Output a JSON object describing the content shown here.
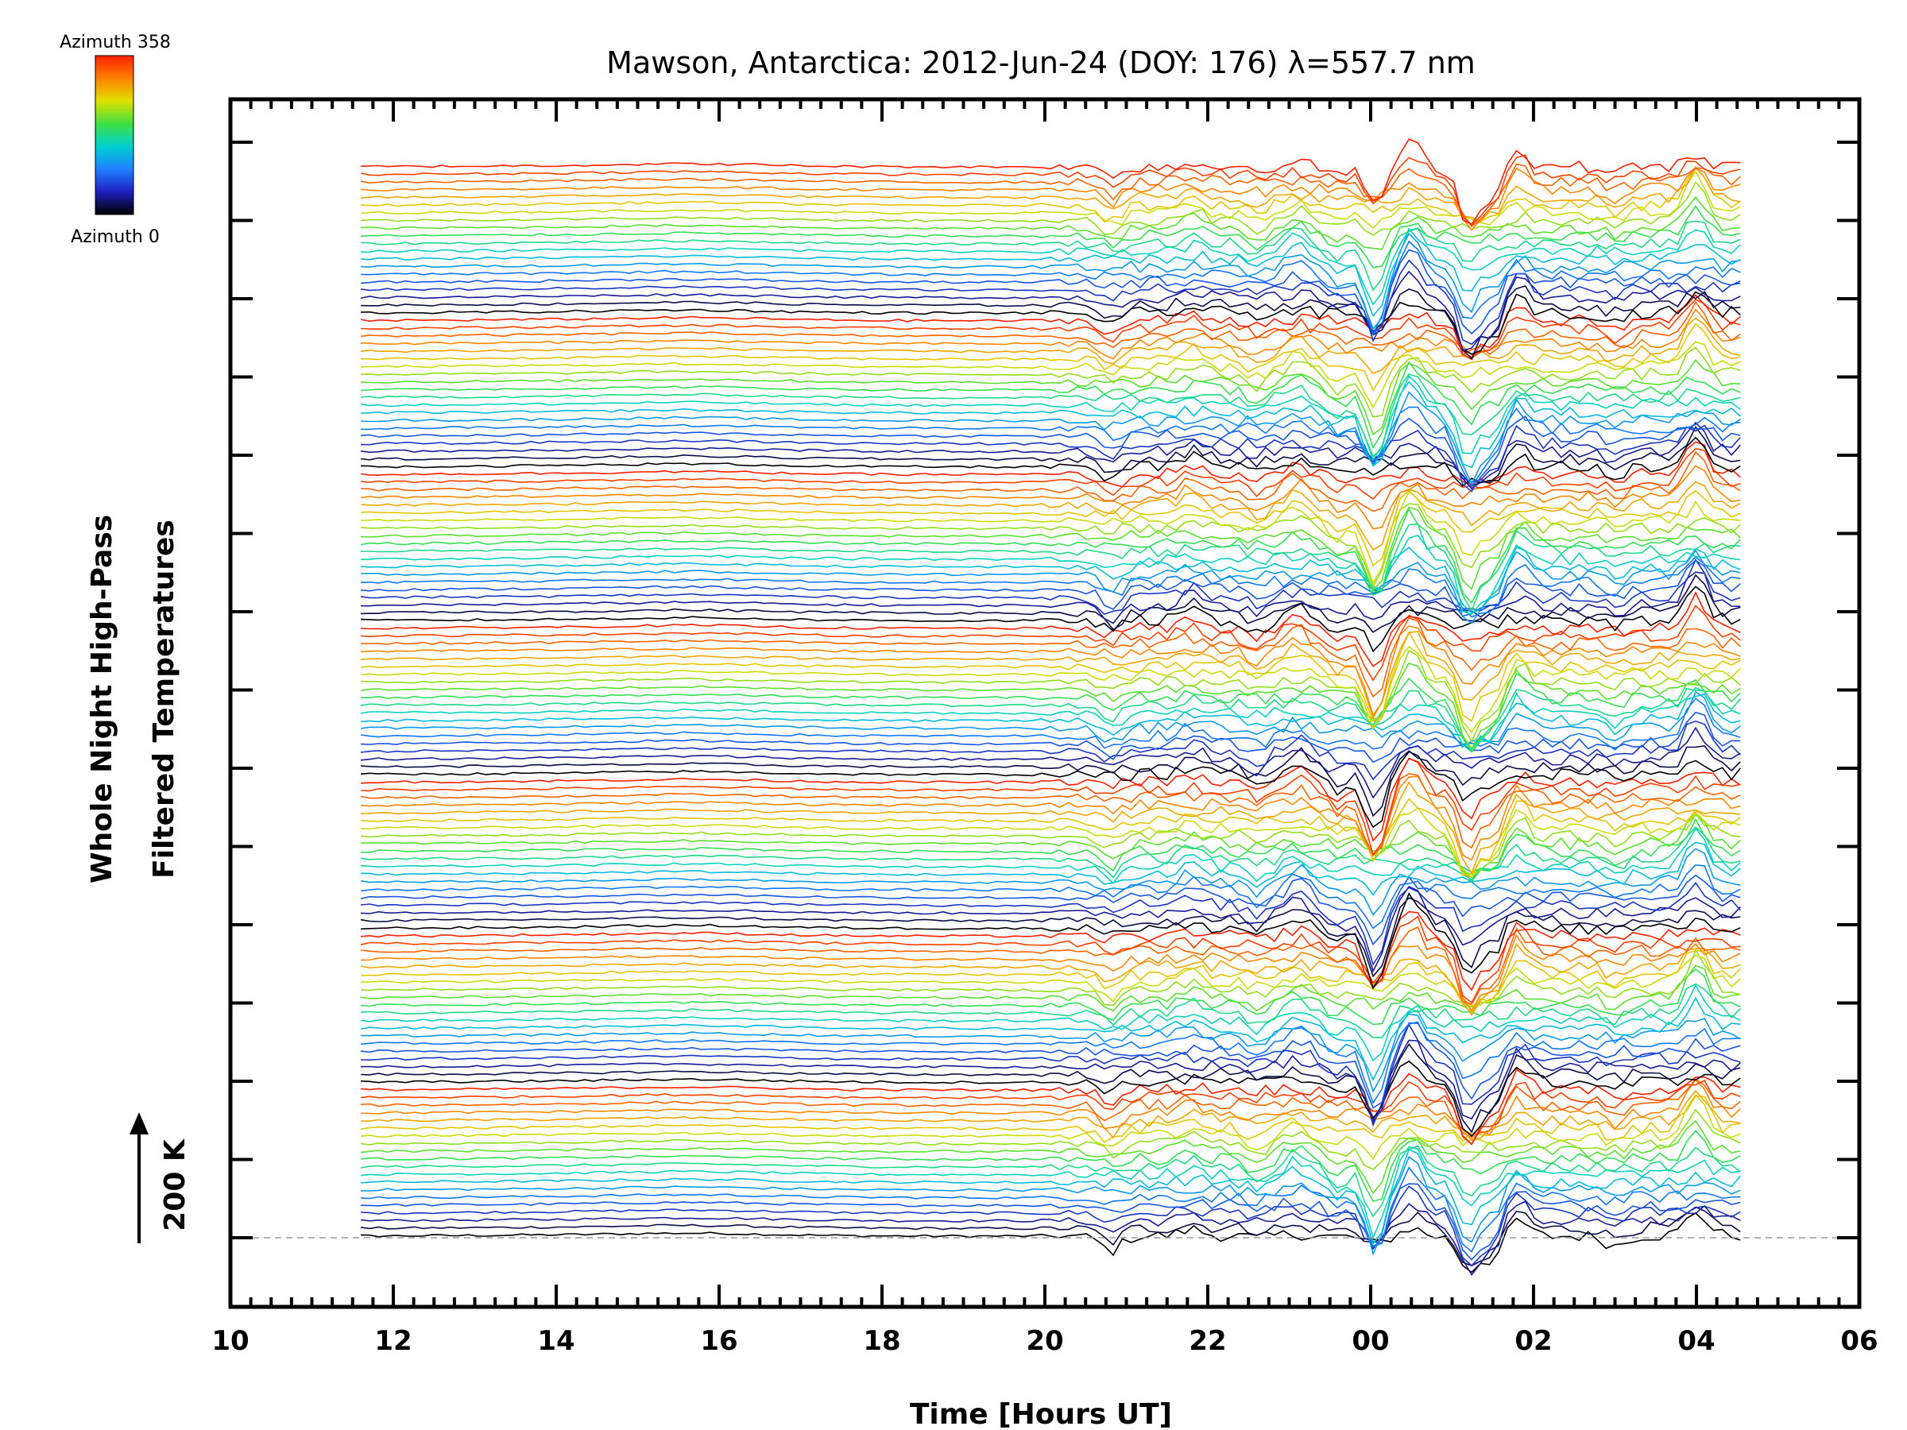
{
  "chart_data": {
    "type": "line",
    "title": "Mawson, Antarctica: 2012-Jun-24 (DOY: 176) λ=557.7 nm",
    "xlabel": "Time [Hours UT]",
    "ylabel_line1": "Whole Night High-Pass",
    "ylabel_line2": "Filtered Temperatures",
    "scale_label": "200 K",
    "x_tick_labels": [
      "10",
      "12",
      "14",
      "16",
      "18",
      "20",
      "22",
      "00",
      "02",
      "04",
      "06"
    ],
    "x_ticks_hours": [
      10,
      12,
      14,
      16,
      18,
      20,
      22,
      24,
      26,
      28,
      30
    ],
    "xlim": [
      10,
      30
    ],
    "data_x_range": [
      11.6,
      28.6
    ],
    "colorbar": {
      "top_label": "Azimuth  358",
      "bottom_label": "Azimuth  0",
      "colors": [
        "#000000",
        "#2020c0",
        "#2080ff",
        "#00d0d0",
        "#40e040",
        "#e0e000",
        "#ff8000",
        "#ff2000"
      ]
    },
    "series_count": 140,
    "group_size": 20,
    "notes_visible": []
  }
}
